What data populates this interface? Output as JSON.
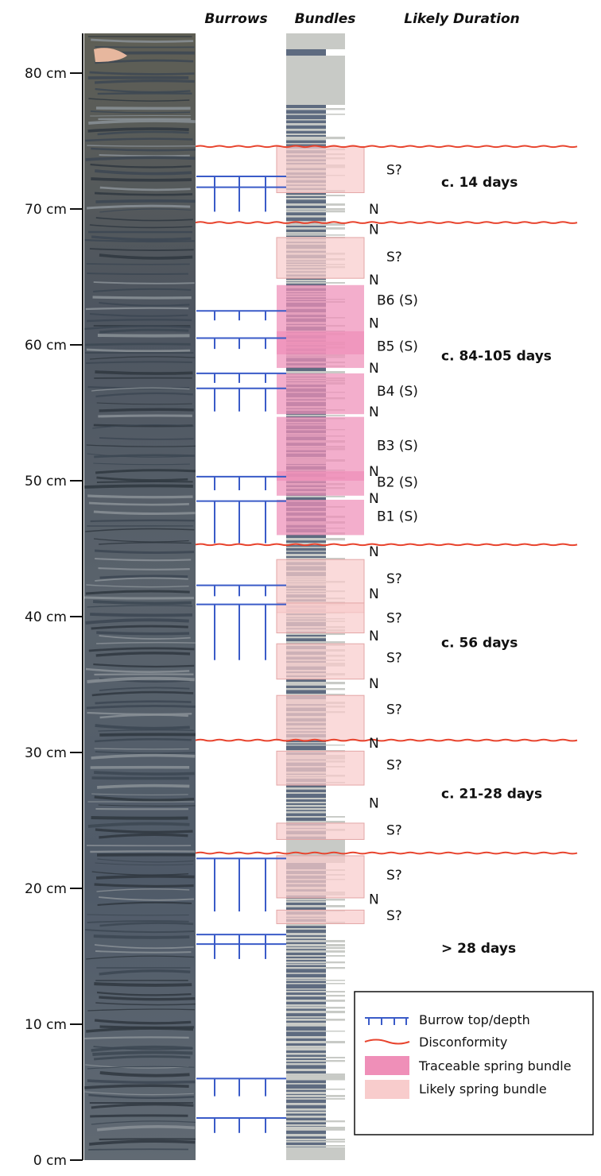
{
  "headers": {
    "burrows": "Burrows",
    "bundles": "Bundles",
    "duration": "Likely Duration"
  },
  "colors": {
    "burrow": "#3a5bc8",
    "disconformity": "#e8442e",
    "traceable": "#ef8fb8",
    "likely": "#f8cccc",
    "bundle_dark": "#5e6b80",
    "bundle_light": "#c8cac6"
  },
  "axis": {
    "range_cm": [
      0,
      80
    ],
    "ticks": [
      {
        "value": 0,
        "label": "0 cm"
      },
      {
        "value": 10,
        "label": "10 cm"
      },
      {
        "value": 20,
        "label": "20 cm"
      },
      {
        "value": 30,
        "label": "30 cm"
      },
      {
        "value": 40,
        "label": "40 cm"
      },
      {
        "value": 50,
        "label": "50 cm"
      },
      {
        "value": 60,
        "label": "60 cm"
      },
      {
        "value": 70,
        "label": "70 cm"
      },
      {
        "value": 80,
        "label": "80 cm"
      }
    ]
  },
  "disconformities_cm": [
    74.6,
    69.0,
    45.3,
    30.9,
    22.6
  ],
  "burrows": [
    {
      "top_cm": 72.4,
      "depth_cm": 0.8
    },
    {
      "top_cm": 71.6,
      "depth_cm": 1.8
    },
    {
      "top_cm": 62.5,
      "depth_cm": 0.7
    },
    {
      "top_cm": 60.5,
      "depth_cm": 0.8
    },
    {
      "top_cm": 57.9,
      "depth_cm": 0.7
    },
    {
      "top_cm": 56.8,
      "depth_cm": 1.7
    },
    {
      "top_cm": 50.3,
      "depth_cm": 1.0
    },
    {
      "top_cm": 48.5,
      "depth_cm": 3.1
    },
    {
      "top_cm": 42.3,
      "depth_cm": 0.8
    },
    {
      "top_cm": 40.9,
      "depth_cm": 4.1
    },
    {
      "top_cm": 22.2,
      "depth_cm": 3.9
    },
    {
      "top_cm": 16.6,
      "depth_cm": 0.8
    },
    {
      "top_cm": 15.9,
      "depth_cm": 1.1
    },
    {
      "top_cm": 6.0,
      "depth_cm": 1.3
    },
    {
      "top_cm": 3.1,
      "depth_cm": 1.1
    }
  ],
  "spring_bundles": [
    {
      "type": "likely",
      "top_cm": 74.6,
      "bottom_cm": 71.2
    },
    {
      "type": "likely",
      "top_cm": 67.9,
      "bottom_cm": 64.9
    },
    {
      "type": "traceable",
      "top_cm": 64.4,
      "bottom_cm": 59.3
    },
    {
      "type": "traceable",
      "top_cm": 61.0,
      "bottom_cm": 58.3
    },
    {
      "type": "traceable",
      "top_cm": 57.9,
      "bottom_cm": 54.9
    },
    {
      "type": "traceable",
      "top_cm": 54.7,
      "bottom_cm": 50.0
    },
    {
      "type": "traceable",
      "top_cm": 50.7,
      "bottom_cm": 48.9
    },
    {
      "type": "traceable",
      "top_cm": 48.6,
      "bottom_cm": 46.0
    },
    {
      "type": "likely",
      "top_cm": 44.2,
      "bottom_cm": 40.3
    },
    {
      "type": "likely",
      "top_cm": 41.0,
      "bottom_cm": 38.8
    },
    {
      "type": "likely",
      "top_cm": 38.0,
      "bottom_cm": 35.4
    },
    {
      "type": "likely",
      "top_cm": 34.2,
      "bottom_cm": 30.9
    },
    {
      "type": "likely",
      "top_cm": 30.1,
      "bottom_cm": 27.6
    },
    {
      "type": "likely",
      "top_cm": 24.8,
      "bottom_cm": 23.6
    },
    {
      "type": "likely",
      "top_cm": 22.4,
      "bottom_cm": 19.3
    },
    {
      "type": "likely",
      "top_cm": 18.4,
      "bottom_cm": 17.4
    }
  ],
  "bundle_labels": [
    {
      "text": "S?",
      "cm": 72.9,
      "col": "s"
    },
    {
      "text": "N",
      "cm": 70.0,
      "col": "n"
    },
    {
      "text": "N",
      "cm": 68.5,
      "col": "n"
    },
    {
      "text": "S?",
      "cm": 66.5,
      "col": "s"
    },
    {
      "text": "N",
      "cm": 64.8,
      "col": "n"
    },
    {
      "text": "B6 (S)",
      "cm": 63.3,
      "col": "s"
    },
    {
      "text": "N",
      "cm": 61.6,
      "col": "n"
    },
    {
      "text": "B5 (S)",
      "cm": 59.9,
      "col": "s"
    },
    {
      "text": "N",
      "cm": 58.3,
      "col": "n"
    },
    {
      "text": "B4 (S)",
      "cm": 56.6,
      "col": "s"
    },
    {
      "text": "N",
      "cm": 55.1,
      "col": "n"
    },
    {
      "text": "B3 (S)",
      "cm": 52.6,
      "col": "s"
    },
    {
      "text": "N",
      "cm": 50.7,
      "col": "n"
    },
    {
      "text": "B2 (S)",
      "cm": 49.9,
      "col": "s"
    },
    {
      "text": "N",
      "cm": 48.7,
      "col": "n"
    },
    {
      "text": "B1 (S)",
      "cm": 47.4,
      "col": "s"
    },
    {
      "text": "N",
      "cm": 44.8,
      "col": "n"
    },
    {
      "text": "S?",
      "cm": 42.8,
      "col": "s"
    },
    {
      "text": "N",
      "cm": 41.7,
      "col": "n"
    },
    {
      "text": "S?",
      "cm": 39.9,
      "col": "s"
    },
    {
      "text": "N",
      "cm": 38.6,
      "col": "n"
    },
    {
      "text": "S?",
      "cm": 37.0,
      "col": "s"
    },
    {
      "text": "N",
      "cm": 35.1,
      "col": "n"
    },
    {
      "text": "S?",
      "cm": 33.2,
      "col": "s"
    },
    {
      "text": "N",
      "cm": 30.7,
      "col": "n"
    },
    {
      "text": "S?",
      "cm": 29.1,
      "col": "s"
    },
    {
      "text": "N",
      "cm": 26.3,
      "col": "n"
    },
    {
      "text": "S?",
      "cm": 24.3,
      "col": "s"
    },
    {
      "text": "S?",
      "cm": 21.0,
      "col": "s"
    },
    {
      "text": "N",
      "cm": 19.2,
      "col": "n"
    },
    {
      "text": "S?",
      "cm": 18.0,
      "col": "s"
    }
  ],
  "durations": [
    {
      "text": "c. 14 days",
      "cm": 72.0
    },
    {
      "text": "c. 84-105 days",
      "cm": 59.2
    },
    {
      "text": "c. 56 days",
      "cm": 38.1
    },
    {
      "text": "c. 21-28 days",
      "cm": 27.0
    },
    {
      "text": "> 28 days",
      "cm": 15.6
    }
  ],
  "legend": {
    "items": [
      {
        "symbol": "burrow",
        "label": "Burrow top/depth"
      },
      {
        "symbol": "disconformity",
        "label": "Disconformity"
      },
      {
        "symbol": "traceable",
        "label": "Traceable spring bundle"
      },
      {
        "symbol": "likely",
        "label": "Likely spring bundle"
      }
    ]
  }
}
